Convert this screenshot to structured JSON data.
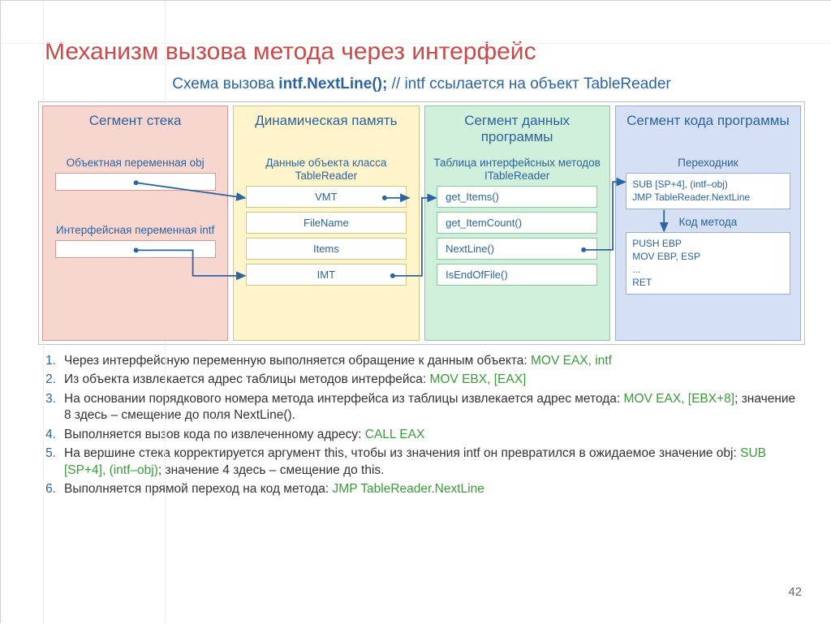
{
  "title": "Механизм вызова метода через интерфейс",
  "subtitle_prefix": "Схема вызова ",
  "subtitle_bold": "intf.NextLine();",
  "subtitle_suffix": " // intf ссылается на объект TableReader",
  "panels": {
    "stack": {
      "header": "Сегмент стека",
      "bg": "#f8d6d0",
      "border": "#d69a92",
      "label1": "Объектная переменная obj",
      "label2": "Интерфейсная переменная intf"
    },
    "heap": {
      "header": "Динамическая память",
      "bg": "#fff4cc",
      "border": "#d6c780",
      "label": "Данные объекта класса TableReader",
      "items": [
        "VMT",
        "FileName",
        "Items",
        "IMT"
      ]
    },
    "data": {
      "header": "Сегмент данных программы",
      "bg": "#d0f0dc",
      "border": "#8ac8a0",
      "label": "Таблица интерфейсных методов ITableReader",
      "items": [
        "get_Items()",
        "get_ItemCount()",
        "NextLine()",
        "IsEndOfFile()"
      ]
    },
    "code": {
      "header": "Сегмент кода программы",
      "bg": "#d6e0f4",
      "border": "#9ab0d6",
      "label1": "Переходник",
      "code1": "SUB [SP+4], (intf–obj)\nJMP TableReader.NextLine",
      "label2": "Код метода",
      "code2": "PUSH EBP\nMOV EBP, ESP\n...\nRET"
    }
  },
  "steps": [
    {
      "t": "Через интерфейсную переменную выполняется обращение к данным объекта: ",
      "c": "MOV EAX, intf"
    },
    {
      "t": "Из объекта извлекается адрес таблицы методов интерфейса: ",
      "c": "MOV EBX, [EAX]"
    },
    {
      "t": "На основании порядкового номера метода интерфейса из таблицы извлекается адрес метода: ",
      "c": "MOV EAX, [EBX+8]",
      "t2": "; значение 8 здесь – смещение до поля NextLine()."
    },
    {
      "t": "Выполняется вызов кода по извлеченному адресу: ",
      "c": "CALL EAX"
    },
    {
      "t": "На вершине стека корректируется аргумент this, чтобы из значения intf он превратился в ожидаемое значение obj: ",
      "c": "SUB [SP+4], (intf–obj)",
      "t2": "; значение 4 здесь – смещение до this."
    },
    {
      "t": "Выполняется прямой переход на код метода: ",
      "c": "JMP TableReader.NextLine"
    }
  ],
  "page_number": "42",
  "arrow_color": "#2b64a0"
}
